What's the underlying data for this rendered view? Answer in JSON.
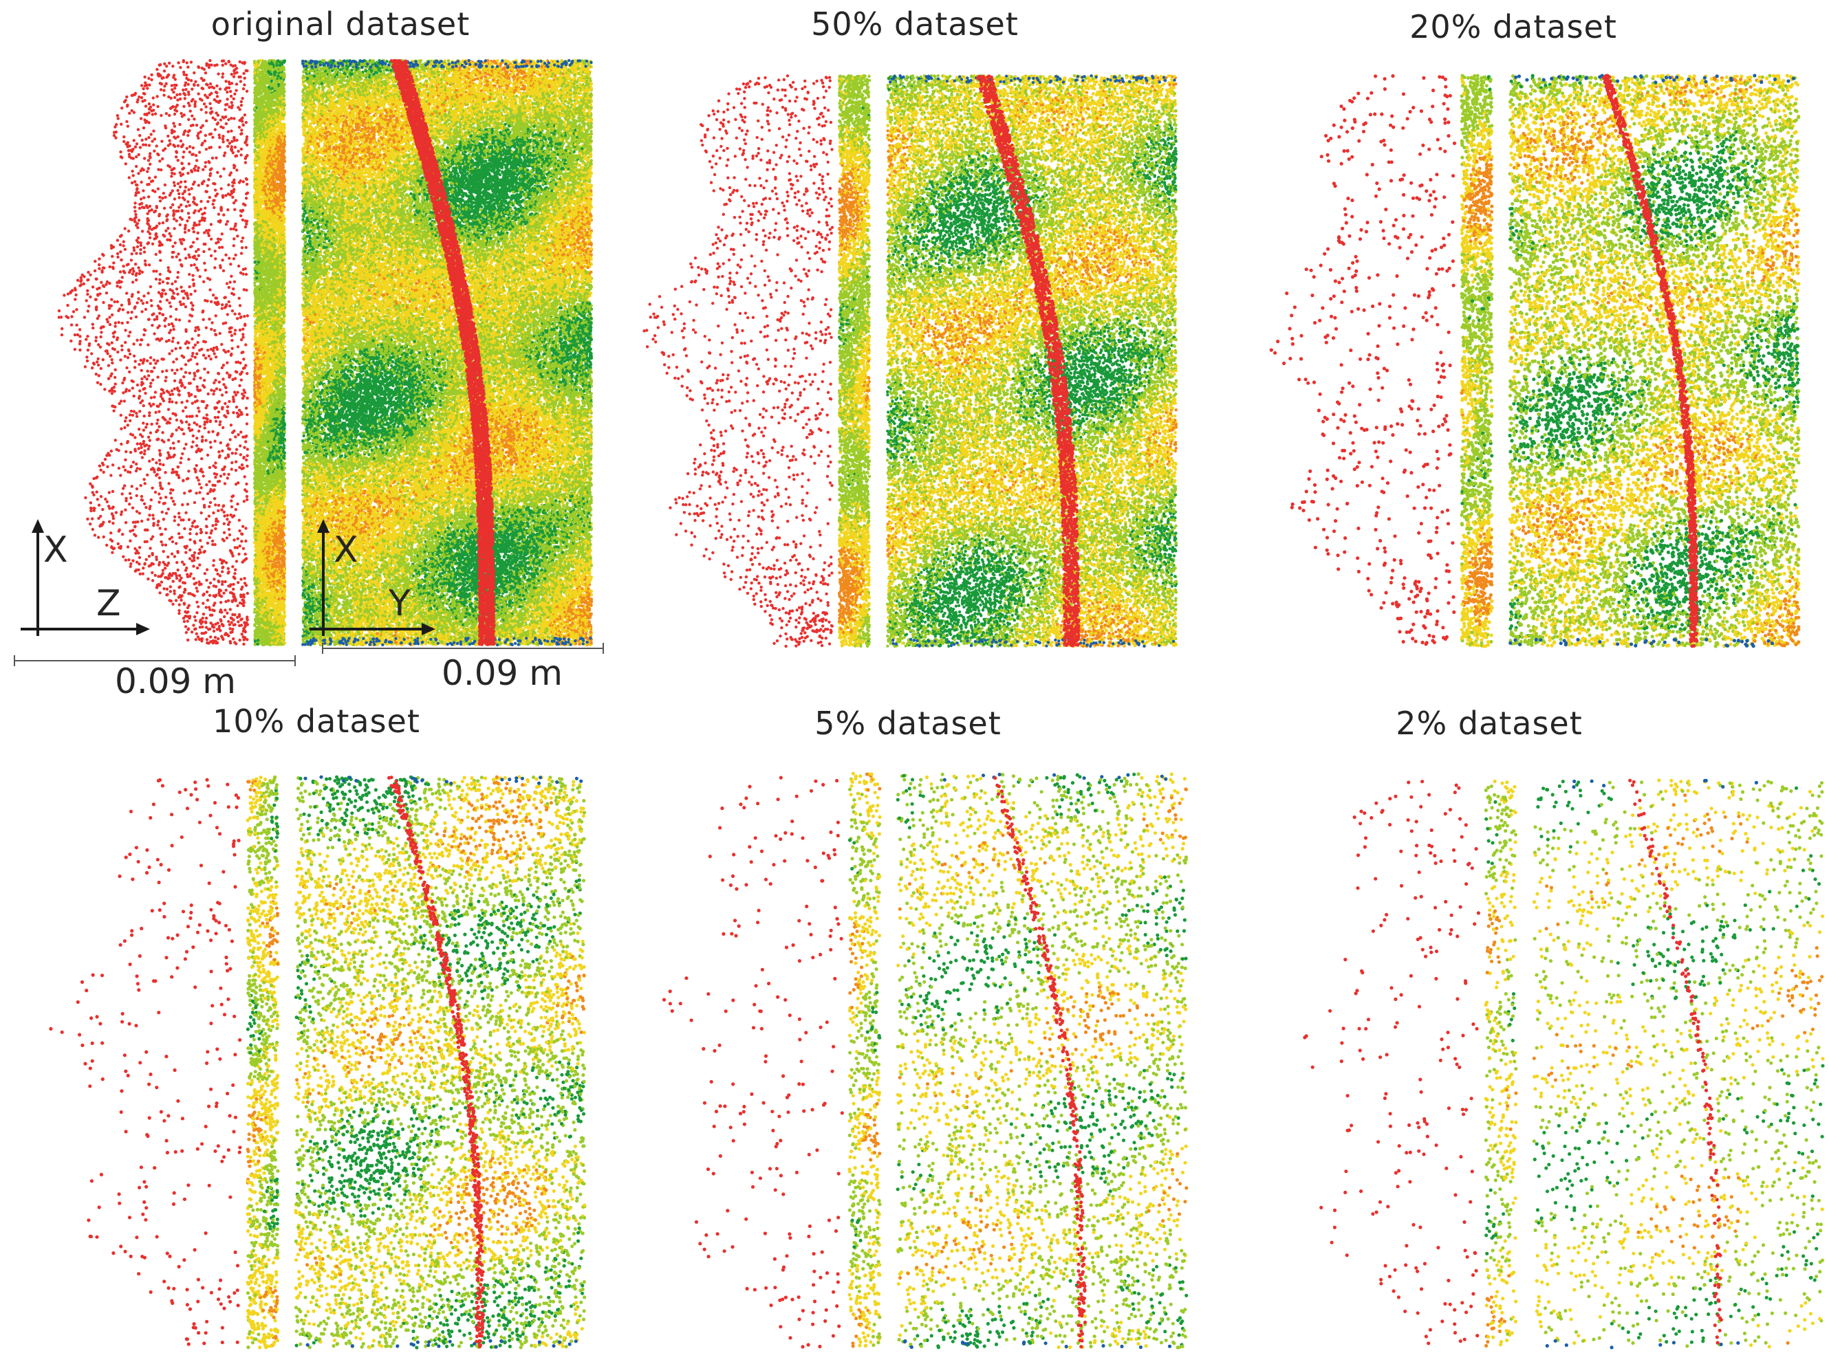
{
  "panels": [
    {
      "title": "original dataset",
      "density": 1.0
    },
    {
      "title": "50% dataset",
      "density": 0.5
    },
    {
      "title": "20% dataset",
      "density": 0.2
    },
    {
      "title": "10% dataset",
      "density": 0.1
    },
    {
      "title": "5% dataset",
      "density": 0.05
    },
    {
      "title": "2% dataset",
      "density": 0.02
    }
  ],
  "axes": {
    "side_view": {
      "vertical": "X",
      "horizontal": "Z"
    },
    "front_view": {
      "vertical": "X",
      "horizontal": "Y"
    }
  },
  "scale_bars": {
    "side_view": "0.09 m",
    "front_view": "0.09 m"
  },
  "colors": {
    "fracture_points": "#e8312e",
    "surface_low": "#1a9a3a",
    "surface_mid": "#9ccb2a",
    "surface_high": "#f2d51e",
    "surface_peak": "#f08a1c",
    "edge_points": "#1c5fa8"
  }
}
